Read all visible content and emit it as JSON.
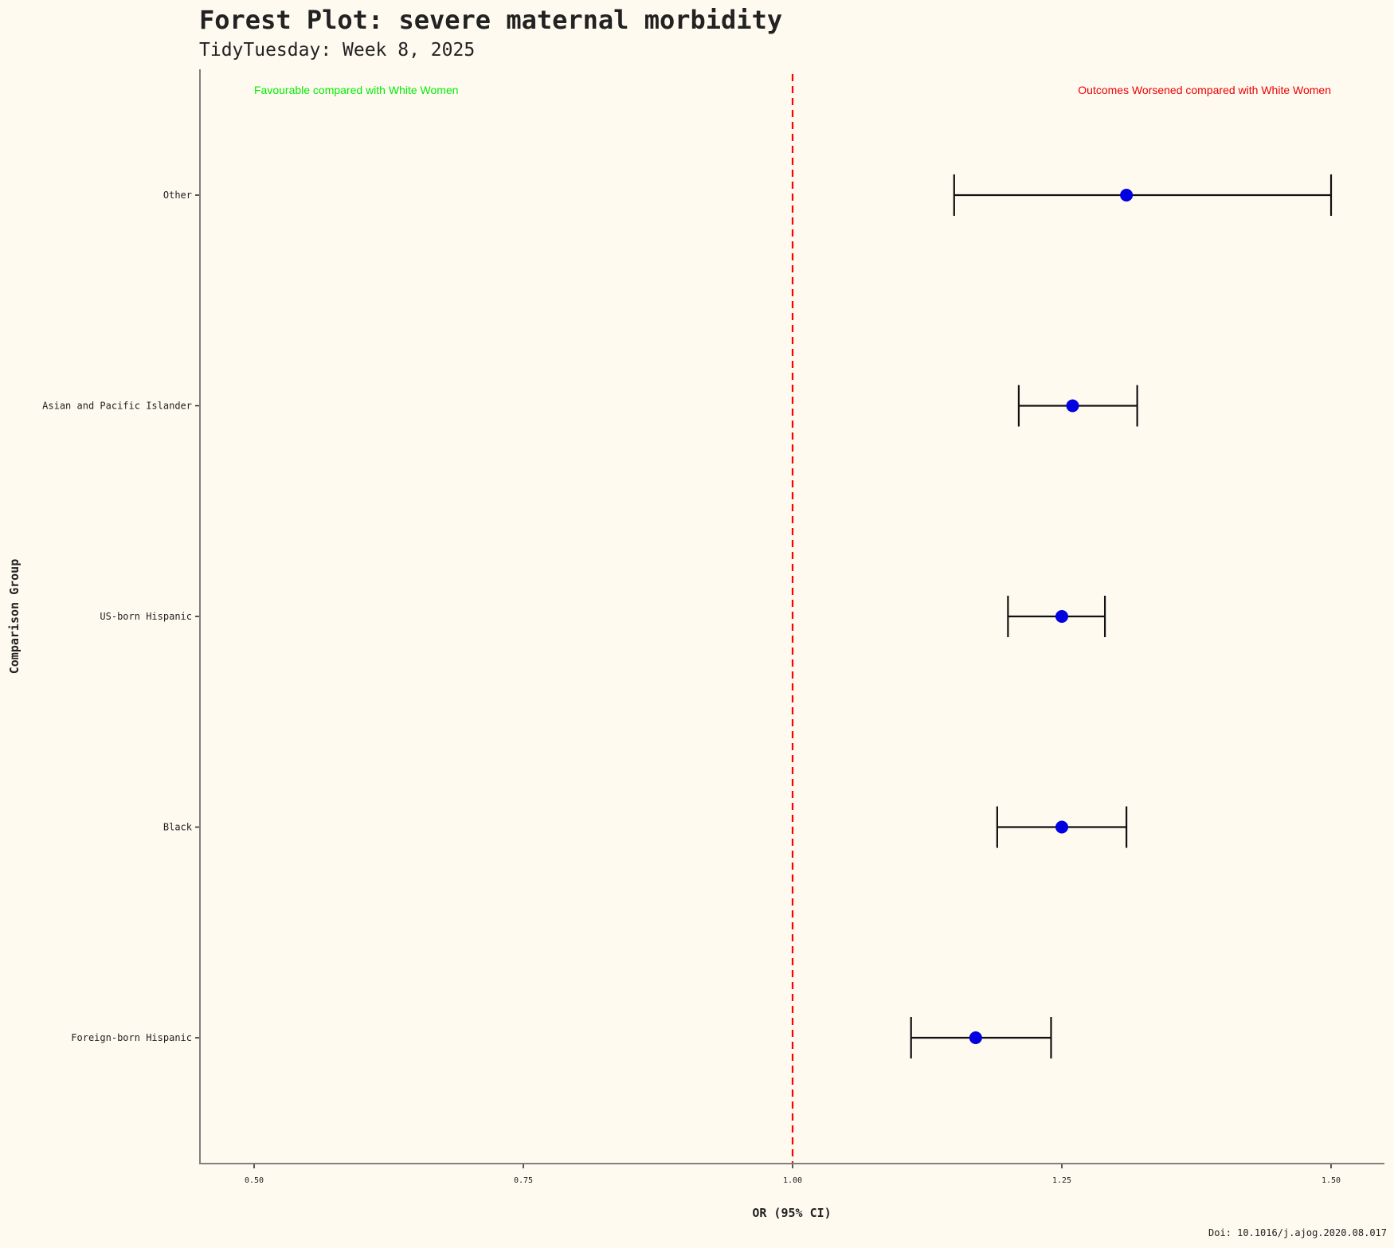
{
  "chart_data": {
    "type": "forest",
    "title": "Forest Plot: severe maternal morbidity",
    "subtitle": "TidyTuesday: Week 8, 2025",
    "xlabel": "OR (95% CI)",
    "ylabel": "Comparison Group",
    "caption": "Doi:  10.1016/j.ajog.2020.08.017",
    "xlim": [
      0.45,
      1.55
    ],
    "x_ticks": [
      "0.50",
      "0.75",
      "1.00",
      "1.25",
      "1.50"
    ],
    "reference_line": 1.0,
    "grid": false,
    "annotations": {
      "left": "Favourable compared with White Women",
      "right": "Outcomes Worsened compared with White Women"
    },
    "groups": [
      {
        "label": "Foreign-born Hispanic",
        "or": 1.17,
        "lower": 1.11,
        "upper": 1.24
      },
      {
        "label": "Black",
        "or": 1.25,
        "lower": 1.19,
        "upper": 1.31
      },
      {
        "label": "US-born Hispanic",
        "or": 1.25,
        "lower": 1.2,
        "upper": 1.29
      },
      {
        "label": "Asian and Pacific Islander",
        "or": 1.26,
        "lower": 1.21,
        "upper": 1.32
      },
      {
        "label": "Other",
        "or": 1.31,
        "lower": 1.15,
        "upper": 1.5
      }
    ]
  },
  "colors": {
    "background": "#fffaf0",
    "point": "#0000e0",
    "errorbar": "#111111",
    "reference_line": "#ff0000",
    "favourable_text": "#00ee00",
    "worsened_text": "#ee0000",
    "axis": "#808080"
  }
}
